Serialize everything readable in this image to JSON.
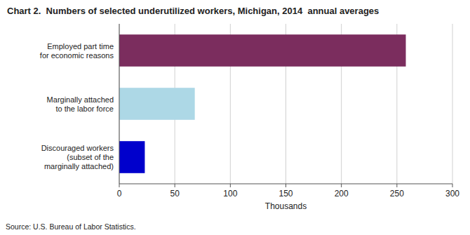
{
  "chart_data": {
    "type": "bar",
    "orientation": "horizontal",
    "title": "Chart 2.  Numbers of selected underutilized workers, Michigan, 2014  annual averages",
    "categories": [
      "Discouraged workers\n(subset of the\nmarginally attached)",
      "Marginally attached\nto the labor force",
      "Employed part time\nfor economic reasons"
    ],
    "values": [
      23,
      68,
      258
    ],
    "colors": [
      "#0000cc",
      "#add8e6",
      "#7b2d5e"
    ],
    "xlabel": "Thousands",
    "xlim": [
      0,
      300
    ],
    "xticks": [
      0,
      50,
      100,
      150,
      200,
      250,
      300
    ],
    "grid": true,
    "annotations": [
      "Source: U.S. Bureau of Labor Statistics."
    ]
  }
}
